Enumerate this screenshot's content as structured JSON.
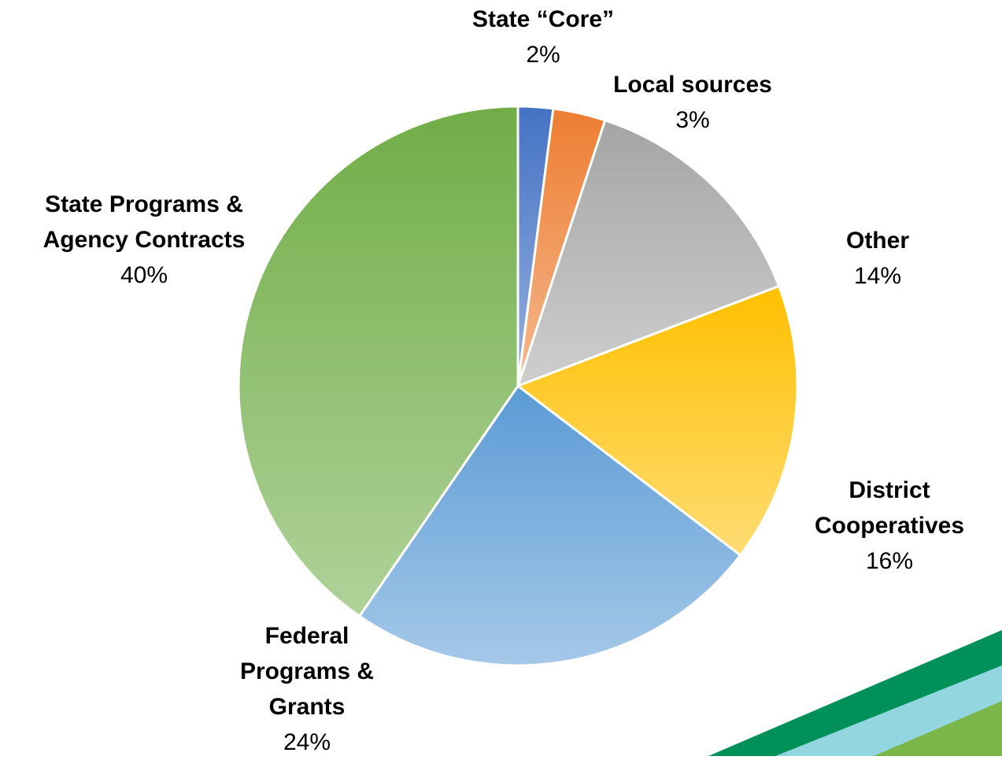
{
  "chart_data": {
    "type": "pie",
    "categories": [
      "State “Core”",
      "Local sources",
      "Other",
      "District Cooperatives",
      "Federal Programs & Grants",
      "State Programs & Agency Contracts"
    ],
    "values": [
      2,
      3,
      14,
      16,
      24,
      40
    ],
    "value_labels": [
      "2%",
      "3%",
      "14%",
      "16%",
      "24%",
      "40%"
    ],
    "colors": [
      "#4472c4",
      "#ed7d31",
      "#a5a5a5",
      "#ffc000",
      "#5b9bd5",
      "#70ad47"
    ]
  }
}
